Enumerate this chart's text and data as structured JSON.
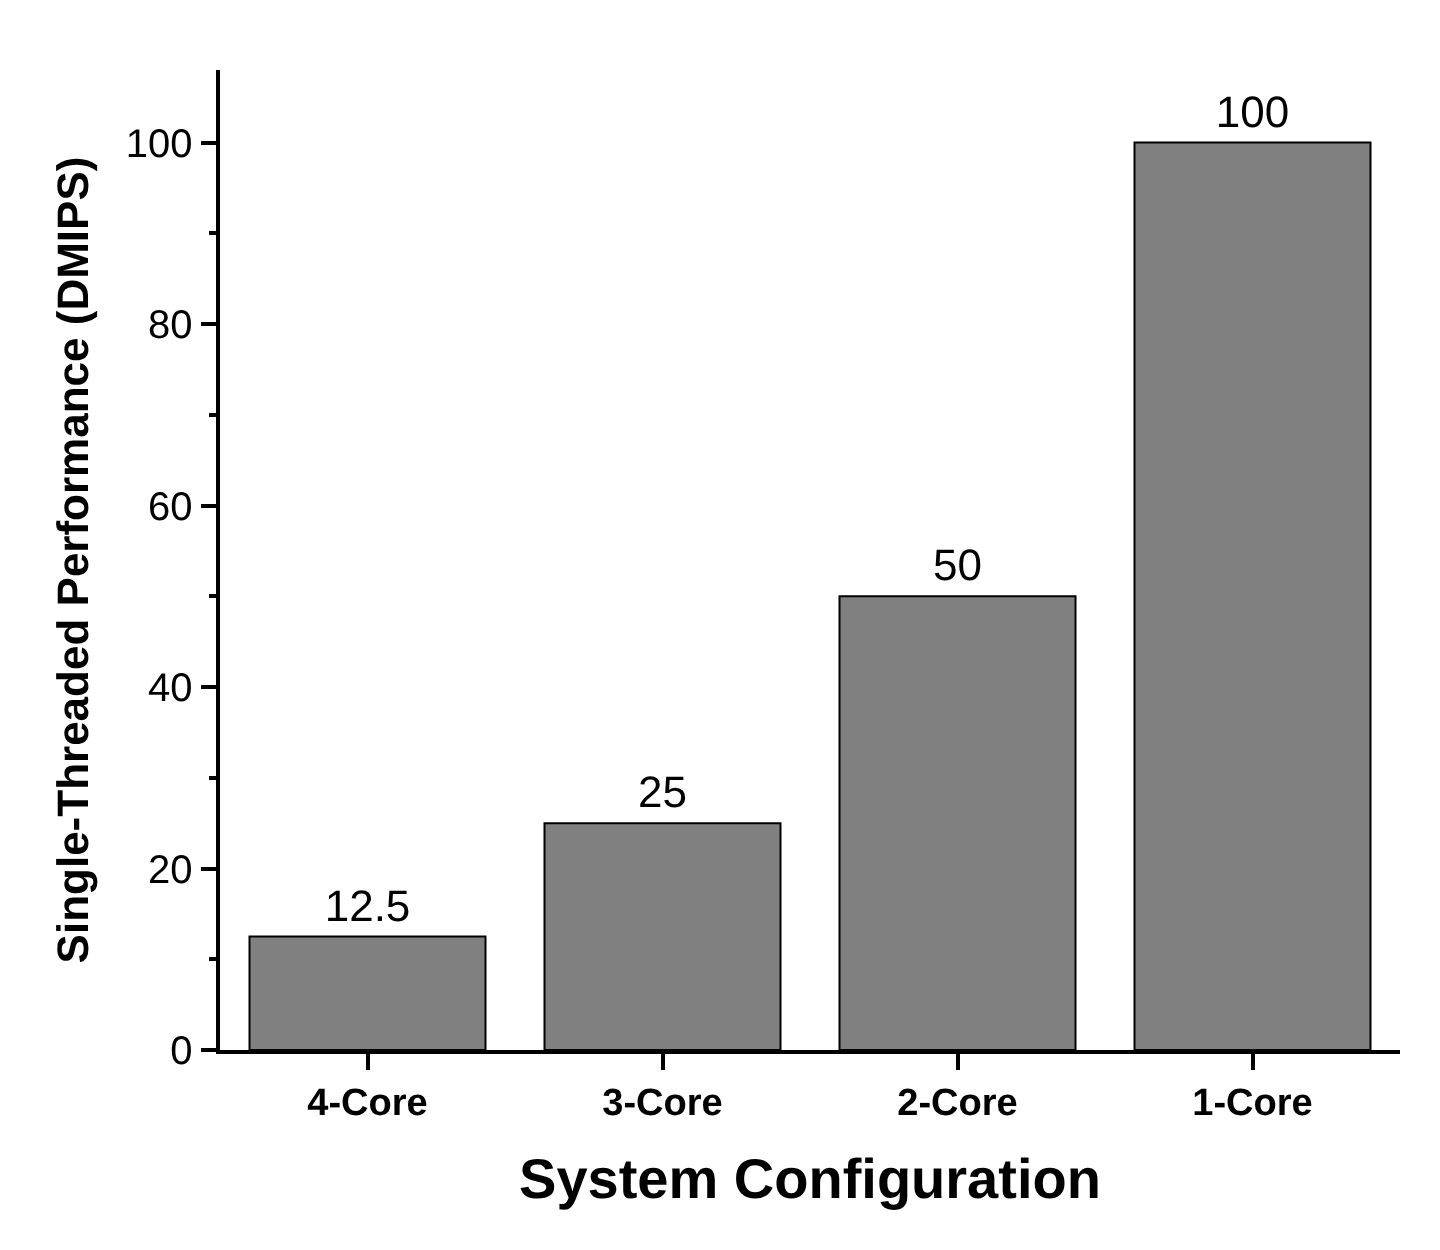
{
  "chart_data": {
    "type": "bar",
    "xlabel": "System Configuration",
    "ylabel": "Single-Threaded Performance (DMIPS)",
    "categories": [
      "4-Core",
      "3-Core",
      "2-Core",
      "1-Core"
    ],
    "values": [
      12.5,
      25,
      50,
      100
    ],
    "color": "#808080",
    "data_labels": true,
    "grid": false,
    "legend": false,
    "ylim": [
      0,
      108
    ],
    "yticks": [
      0,
      {
        "value": 10,
        "label": null
      },
      20,
      {
        "value": 30,
        "label": null
      },
      40,
      {
        "value": 50,
        "label": null
      },
      60,
      {
        "value": 70,
        "label": null
      },
      80,
      {
        "value": 90,
        "label": null
      },
      100
    ]
  }
}
